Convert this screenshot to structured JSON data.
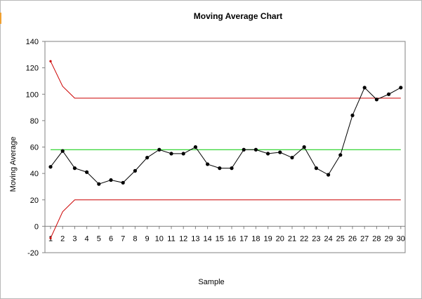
{
  "chart_data": {
    "type": "line",
    "title": "Moving Average Chart",
    "xlabel": "Sample",
    "ylabel": "Moving Average",
    "ylim": [
      -20,
      140
    ],
    "yticks": [
      -20,
      0,
      20,
      40,
      60,
      80,
      100,
      120,
      140
    ],
    "x": [
      1,
      2,
      3,
      4,
      5,
      6,
      7,
      8,
      9,
      10,
      11,
      12,
      13,
      14,
      15,
      16,
      17,
      18,
      19,
      20,
      21,
      22,
      23,
      24,
      25,
      26,
      27,
      28,
      29,
      30
    ],
    "grid": false,
    "legend": "none",
    "series": [
      {
        "role": "data",
        "color": "#000000",
        "marker": "circle",
        "values": [
          45,
          57,
          44,
          41,
          32,
          35,
          33,
          42,
          52,
          58,
          55,
          55,
          60,
          47,
          44,
          44,
          58,
          58,
          55,
          56,
          52,
          60,
          44,
          39,
          54,
          84,
          105,
          96,
          100,
          105
        ]
      },
      {
        "role": "center-line",
        "color": "#00cc00",
        "values": [
          58,
          58,
          58,
          58,
          58,
          58,
          58,
          58,
          58,
          58,
          58,
          58,
          58,
          58,
          58,
          58,
          58,
          58,
          58,
          58,
          58,
          58,
          58,
          58,
          58,
          58,
          58,
          58,
          58,
          58
        ]
      },
      {
        "role": "upper-limit",
        "color": "#cc0000",
        "values": [
          125,
          106,
          97,
          97,
          97,
          97,
          97,
          97,
          97,
          97,
          97,
          97,
          97,
          97,
          97,
          97,
          97,
          97,
          97,
          97,
          97,
          97,
          97,
          97,
          97,
          97,
          97,
          97,
          97,
          97
        ]
      },
      {
        "role": "lower-limit",
        "color": "#cc0000",
        "values": [
          -9,
          11,
          20,
          20,
          20,
          20,
          20,
          20,
          20,
          20,
          20,
          20,
          20,
          20,
          20,
          20,
          20,
          20,
          20,
          20,
          20,
          20,
          20,
          20,
          20,
          20,
          20,
          20,
          20,
          20
        ]
      }
    ]
  }
}
